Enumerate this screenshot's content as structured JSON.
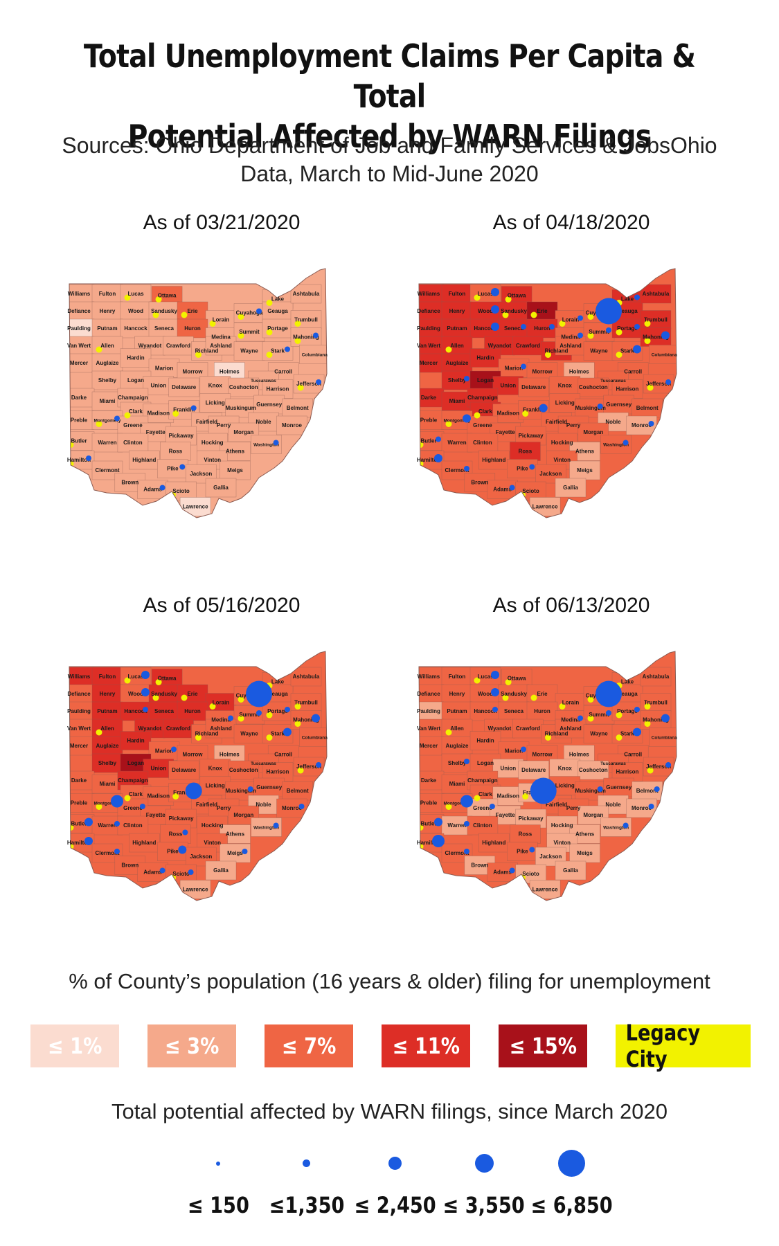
{
  "title_line1": "Total Unemployment Claims Per Capita & Total",
  "title_line2": "Potential Affected by WARN Filings",
  "subtitle_line1": "Sources: Ohio Department of Job and Family Services & JobsOhio",
  "subtitle_line2": "Data, March to Mid-June 2020",
  "colors": {
    "le1": "#fbdcd0",
    "le3": "#f5a98b",
    "le7": "#ef6544",
    "le11": "#dd2e26",
    "le15": "#a8111a",
    "legacy": "#f2f200",
    "warn": "#1a5ae0",
    "border": "#8a5a50"
  },
  "panels": [
    {
      "date": "As of 03/21/2020",
      "base_class": "le3",
      "overrides": {
        "Paulding": "le1",
        "Holmes": "le1",
        "Lawrence": "le1",
        "Erie": "le7",
        "Huron": "le7",
        "Ottawa": "le7"
      },
      "warn": {
        "Cuyahoga": 1,
        "Mahoning": 1,
        "Stark": 1,
        "Franklin": 1,
        "Adams": 1,
        "Pike": 1,
        "Hamilton": 1,
        "Montgomery": 1,
        "Washington": 1,
        "Jefferson": 1
      }
    },
    {
      "date": "As of 04/18/2020",
      "base_class": "le7",
      "overrides": {
        "Williams": "le11",
        "Fulton": "le11",
        "Defiance": "le11",
        "Henry": "le11",
        "Wood": "le11",
        "Paulding": "le11",
        "Putnam": "le11",
        "Hancock": "le11",
        "Allen": "le11",
        "Van Wert": "le11",
        "Mercer": "le11",
        "Auglaize": "le11",
        "Hardin": "le11",
        "Shelby": "le11",
        "Darke": "le11",
        "Miami": "le11",
        "Champaign": "le11",
        "Logan": "le15",
        "Sandusky": "le11",
        "Ottawa": "le11",
        "Erie": "le15",
        "Huron": "le11",
        "Seneca": "le11",
        "Wyandot": "le11",
        "Crawford": "le11",
        "Richland": "le11",
        "Union": "le11",
        "Clark": "le11",
        "Ross": "le11",
        "Geauga": "le11",
        "Trumbull": "le11",
        "Ashtabula": "le11",
        "Mahoning": "le11",
        "Lake": "le11",
        "Portage": "le11",
        "Holmes": "le3",
        "Lawrence": "le3",
        "Noble": "le3",
        "Athens": "le3",
        "Gallia": "le3",
        "Meigs": "le3",
        "Monroe": "le3"
      },
      "warn": {
        "Cuyahoga": 5,
        "Lake": 1,
        "Lucas": 2,
        "Wood": 2,
        "Hancock": 2,
        "Seneca": 1,
        "Huron": 1,
        "Portage": 1,
        "Mahoning": 2,
        "Stark": 2,
        "Franklin": 2,
        "Shelby": 1,
        "Montgomery": 2,
        "Hamilton": 2,
        "Butler": 1,
        "Clermont": 1,
        "Adams": 1,
        "Pike": 1,
        "Washington": 1,
        "Jefferson": 1,
        "Monroe": 1,
        "Muskingum": 1,
        "Marion": 1,
        "Lorain": 1,
        "Medina": 1,
        "Summit": 1
      }
    },
    {
      "date": "As of 05/16/2020",
      "base_class": "le7",
      "overrides": {
        "Williams": "le11",
        "Fulton": "le11",
        "Henry": "le11",
        "Hancock": "le11",
        "Seneca": "le11",
        "Wyandot": "le11",
        "Crawford": "le11",
        "Sandusky": "le11",
        "Erie": "le11",
        "Huron": "le11",
        "Putnam": "le11",
        "Allen": "le11",
        "Hardin": "le11",
        "Auglaize": "le11",
        "Shelby": "le11",
        "Logan": "le15",
        "Union": "le11",
        "Champaign": "le11",
        "Lorain": "le11",
        "Ottawa": "le11",
        "Holmes": "le3",
        "Athens": "le3",
        "Lawrence": "le3",
        "Noble": "le3",
        "Meigs": "le3",
        "Gallia": "le3",
        "Washington": "le3"
      },
      "warn": {
        "Cuyahoga": 5,
        "Lucas": 2,
        "Wood": 2,
        "Hancock": 1,
        "Franklin": 4,
        "Montgomery": 3,
        "Hamilton": 2,
        "Butler": 2,
        "Clermont": 1,
        "Adams": 1,
        "Pike": 2,
        "Scioto": 1,
        "Stark": 2,
        "Mahoning": 2,
        "Summit": 1,
        "Portage": 1,
        "Medina": 1,
        "Muskingum": 1,
        "Marion": 1,
        "Washington": 1,
        "Monroe": 1,
        "Jefferson": 1,
        "Ross": 1,
        "Warren": 1,
        "Meigs": 1,
        "Greene": 1
      }
    },
    {
      "date": "As of 06/13/2020",
      "base_class": "le7",
      "overrides": {
        "Paulding": "le3",
        "Union": "le3",
        "Delaware": "le3",
        "Madison": "le3",
        "Franklin": "le3",
        "Pickaway": "le3",
        "Holmes": "le3",
        "Hocking": "le3",
        "Athens": "le3",
        "Vinton": "le3",
        "Meigs": "le3",
        "Gallia": "le3",
        "Lawrence": "le3",
        "Jackson": "le3",
        "Scioto": "le3",
        "Brown": "le3",
        "Noble": "le3",
        "Monroe": "le3",
        "Washington": "le3",
        "Belmont": "le3",
        "Knox": "le3",
        "Warren": "le3",
        "Greene": "le3",
        "Fayette": "le3",
        "Morgan": "le3",
        "Coshocton": "le3"
      },
      "warn": {
        "Cuyahoga": 5,
        "Lucas": 2,
        "Wood": 2,
        "Hancock": 1,
        "Franklin": 5,
        "Montgomery": 3,
        "Hamilton": 3,
        "Butler": 2,
        "Clermont": 1,
        "Adams": 1,
        "Pike": 1,
        "Stark": 2,
        "Mahoning": 2,
        "Summit": 1,
        "Portage": 1,
        "Medina": 1,
        "Muskingum": 1,
        "Marion": 1,
        "Washington": 1,
        "Monroe": 1,
        "Jefferson": 1,
        "Belmont": 1,
        "Shelby": 1,
        "Warren": 1,
        "Greene": 1
      }
    }
  ],
  "county_labels": [
    "Williams",
    "Fulton",
    "Lucas",
    "Ottawa",
    "Defiance",
    "Henry",
    "Wood",
    "Sandusky",
    "Erie",
    "Lorain",
    "Cuyahoga",
    "Lake",
    "Geauga",
    "Ashtabula",
    "Paulding",
    "Putnam",
    "Hancock",
    "Seneca",
    "Huron",
    "Medina",
    "Summit",
    "Portage",
    "Trumbull",
    "Van Wert",
    "Allen",
    "Wyandot",
    "Crawford",
    "Richland",
    "Ashland",
    "Wayne",
    "Stark",
    "Mahoning",
    "Columbiana",
    "Mercer",
    "Auglaize",
    "Hardin",
    "Marion",
    "Morrow",
    "Holmes",
    "Carroll",
    "Tuscarawas",
    "Shelby",
    "Logan",
    "Union",
    "Delaware",
    "Knox",
    "Coshocton",
    "Harrison",
    "Jefferson",
    "Darke",
    "Miami",
    "Champaign",
    "Licking",
    "Muskingum",
    "Guernsey",
    "Belmont",
    "Clark",
    "Madison",
    "Franklin",
    "Preble",
    "Montgomery",
    "Greene",
    "Fairfield",
    "Perry",
    "Noble",
    "Monroe",
    "Fayette",
    "Pickaway",
    "Morgan",
    "Butler",
    "Warren",
    "Clinton",
    "Hocking",
    "Washington",
    "Ross",
    "Athens",
    "Hamilton",
    "Highland",
    "Vinton",
    "Clermont",
    "Pike",
    "Meigs",
    "Brown",
    "Jackson",
    "Adams",
    "Scioto",
    "Gallia",
    "Lawrence"
  ],
  "legend": {
    "title": "% of County’s population (16 years & older) filing for unemployment",
    "items": [
      {
        "label": "≤ 1%",
        "color": "#fbdcd0",
        "text_color": "#ffffff"
      },
      {
        "label": "≤ 3%",
        "color": "#f5a98b",
        "text_color": "#ffffff"
      },
      {
        "label": "≤ 7%",
        "color": "#ef6544",
        "text_color": "#ffffff"
      },
      {
        "label": "≤ 11%",
        "color": "#dd2e26",
        "text_color": "#ffffff"
      },
      {
        "label": "≤ 15%",
        "color": "#a8111a",
        "text_color": "#ffffff"
      },
      {
        "label": "Legacy City",
        "color": "#f2f200",
        "text_color": "#111111"
      }
    ]
  },
  "warn_legend": {
    "title": "Total potential affected by WARN filings, since March 2020",
    "items": [
      "≤ 150",
      "≤1,350",
      "≤ 2,450",
      "≤ 3,550",
      "≤ 6,850"
    ]
  }
}
